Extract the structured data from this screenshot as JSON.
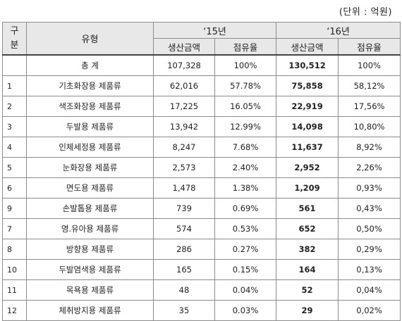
{
  "unit_label": "(단위 : 억원)",
  "header": {
    "gubun_top": "구",
    "gubun_bottom": "분",
    "type": "유형",
    "year1": "‘15년",
    "year2": "‘16년",
    "col_prod": "생산금액",
    "col_share": "점유율"
  },
  "rows": [
    {
      "no": "",
      "type": "총   계",
      "p15": "107,328",
      "s15": "100%",
      "p16": "130,512",
      "s16": "100%"
    },
    {
      "no": "1",
      "type": "기초화장용 제품류",
      "p15": "62,016",
      "s15": "57.78%",
      "p16": "75,858",
      "s16": "58,12%"
    },
    {
      "no": "2",
      "type": "색조화장용 제품류",
      "p15": "17,225",
      "s15": "16.05%",
      "p16": "22,919",
      "s16": "17,56%"
    },
    {
      "no": "3",
      "type": "두발용 제품류",
      "p15": "13,942",
      "s15": "12.99%",
      "p16": "14,098",
      "s16": "10,80%"
    },
    {
      "no": "4",
      "type": "인체세정용 제품류",
      "p15": "8,247",
      "s15": "7.68%",
      "p16": "11,637",
      "s16": "8,92%"
    },
    {
      "no": "5",
      "type": "눈화장용 제품류",
      "p15": "2,573",
      "s15": "2.40%",
      "p16": "2,952",
      "s16": "2,26%"
    },
    {
      "no": "6",
      "type": "면도용 제품류",
      "p15": "1,478",
      "s15": "1.38%",
      "p16": "1,209",
      "s16": "0,93%"
    },
    {
      "no": "9",
      "type": "손발톱용 제품류",
      "p15": "739",
      "s15": "0.69%",
      "p16": "561",
      "s16": "0,43%"
    },
    {
      "no": "7",
      "type": "영.유아용 제품류",
      "p15": "574",
      "s15": "0.53%",
      "p16": "652",
      "s16": "0,50%"
    },
    {
      "no": "8",
      "type": "방향용 제품류",
      "p15": "286",
      "s15": "0.27%",
      "p16": "382",
      "s16": "0,29%"
    },
    {
      "no": "10",
      "type": "두발염색용 제품류",
      "p15": "165",
      "s15": "0.15%",
      "p16": "164",
      "s16": "0,13%"
    },
    {
      "no": "11",
      "type": "목욕용 제품류",
      "p15": "48",
      "s15": "0.04%",
      "p16": "52",
      "s16": "0,04%"
    },
    {
      "no": "12",
      "type": "체취방지용  제품류",
      "p15": "35",
      "s15": "0.03%",
      "p16": "29",
      "s16": "0,02%"
    }
  ]
}
